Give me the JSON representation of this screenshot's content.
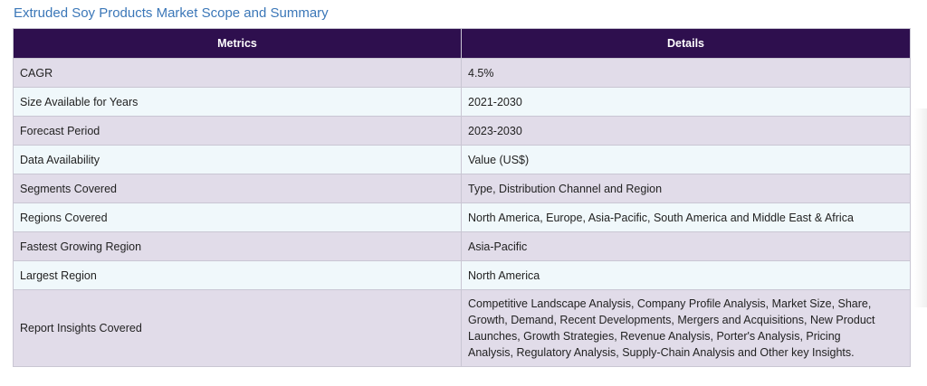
{
  "title": "Extruded Soy Products Market Scope and Summary",
  "table": {
    "headers": {
      "metrics": "Metrics",
      "details": "Details"
    },
    "rows": [
      {
        "metric": "CAGR",
        "detail": "4.5%"
      },
      {
        "metric": "Size Available for Years",
        "detail": "2021-2030"
      },
      {
        "metric": "Forecast Period",
        "detail": "2023-2030"
      },
      {
        "metric": "Data Availability",
        "detail": "Value (US$)"
      },
      {
        "metric": "Segments Covered",
        "detail": "Type, Distribution Channel and Region"
      },
      {
        "metric": "Regions Covered",
        "detail": "North America, Europe, Asia-Pacific, South America and Middle East & Africa"
      },
      {
        "metric": "Fastest Growing Region",
        "detail": "Asia-Pacific"
      },
      {
        "metric": "Largest Region",
        "detail": "North America"
      },
      {
        "metric": "Report Insights Covered",
        "detail": "Competitive Landscape Analysis, Company Profile Analysis, Market Size, Share, Growth, Demand, Recent Developments, Mergers and Acquisitions, New Product Launches, Growth Strategies, Revenue Analysis, Porter's Analysis, Pricing Analysis, Regulatory Analysis, Supply-Chain Analysis and Other key Insights."
      }
    ]
  },
  "colors": {
    "header_bg": "#2e0f4e",
    "row_odd_bg": "#e1dce9",
    "row_even_bg": "#f0f8fb",
    "title_color": "#3b77b8"
  }
}
